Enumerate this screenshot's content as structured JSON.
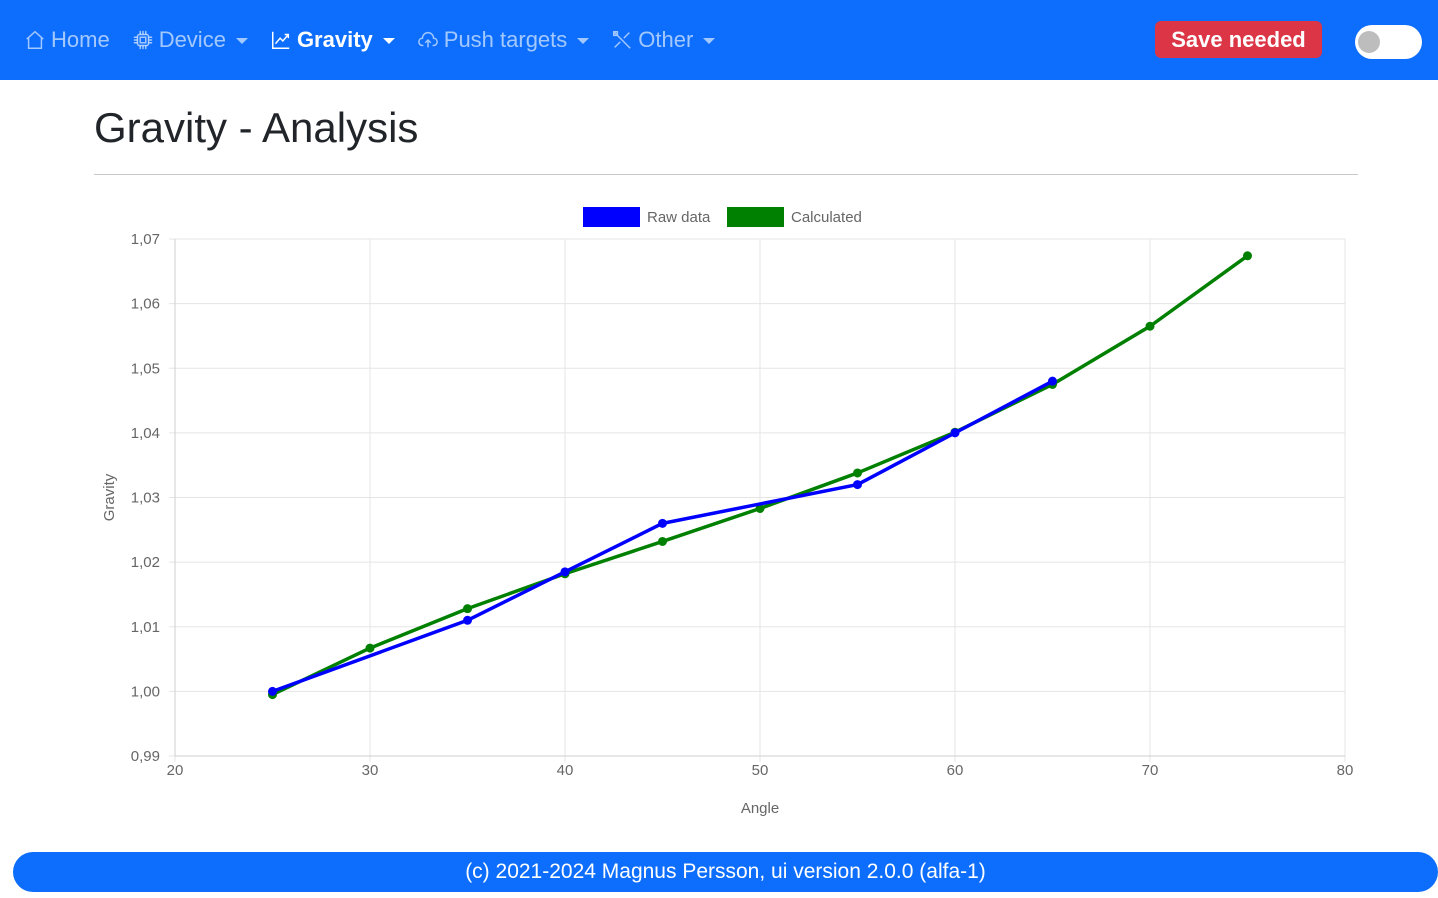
{
  "nav": {
    "home": "Home",
    "device": "Device",
    "gravity": "Gravity",
    "push_targets": "Push targets",
    "other": "Other",
    "save_button": "Save needed"
  },
  "page": {
    "title": "Gravity - Analysis"
  },
  "footer": {
    "text": "(c) 2021-2024 Magnus Persson, ui version 2.0.0 (alfa-1)"
  },
  "colors": {
    "navbar": "#0d6efd",
    "save": "#dc3545",
    "raw": "#0000ff",
    "calculated": "#008000"
  },
  "chart_data": {
    "type": "line",
    "xlabel": "Angle",
    "ylabel": "Gravity",
    "xlim": [
      20,
      80
    ],
    "ylim": [
      0.99,
      1.07
    ],
    "x_ticks": [
      20,
      30,
      40,
      50,
      60,
      70,
      80
    ],
    "y_ticks": [
      "0,99",
      "1,00",
      "1,01",
      "1,02",
      "1,03",
      "1,04",
      "1,05",
      "1,06",
      "1,07"
    ],
    "y_tick_values": [
      0.99,
      1.0,
      1.01,
      1.02,
      1.03,
      1.04,
      1.05,
      1.06,
      1.07
    ],
    "grid": true,
    "legend": "top-center",
    "series": [
      {
        "name": "Raw data",
        "color": "#0000ff",
        "x": [
          25,
          35,
          40,
          45,
          55,
          60,
          65
        ],
        "y": [
          1.0,
          1.011,
          1.0185,
          1.026,
          1.032,
          1.04,
          1.048
        ]
      },
      {
        "name": "Calculated",
        "color": "#008000",
        "x": [
          25,
          30,
          35,
          40,
          45,
          50,
          55,
          60,
          65,
          70,
          75
        ],
        "y": [
          0.9995,
          1.0067,
          1.0128,
          1.0182,
          1.0232,
          1.0283,
          1.0338,
          1.0401,
          1.0475,
          1.0565,
          1.0674
        ]
      }
    ]
  }
}
